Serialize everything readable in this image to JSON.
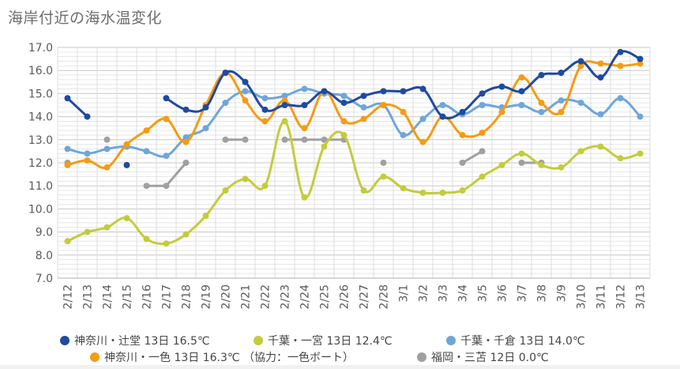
{
  "chart_data": {
    "type": "line",
    "title": "海岸付近の海水温変化",
    "xlabel": "",
    "ylabel": "",
    "ylim": [
      7.0,
      17.0
    ],
    "yticks": [
      "7.0",
      "8.0",
      "9.0",
      "10.0",
      "11.0",
      "12.0",
      "13.0",
      "14.0",
      "15.0",
      "16.0",
      "17.0"
    ],
    "grid": true,
    "legend_position": "bottom",
    "categories": [
      "2/12",
      "2/13",
      "2/14",
      "2/15",
      "2/16",
      "2/17",
      "2/18",
      "2/19",
      "2/20",
      "2/21",
      "2/22",
      "2/23",
      "2/24",
      "2/25",
      "2/26",
      "2/27",
      "2/28",
      "3/1",
      "3/2",
      "3/3",
      "3/4",
      "3/5",
      "3/6",
      "3/7",
      "3/8",
      "3/9",
      "3/10",
      "3/11",
      "3/12",
      "3/13"
    ],
    "series": [
      {
        "name": "神奈川・辻堂 13日 16.5℃",
        "color": "#1f4aa0",
        "smooth": true,
        "values": [
          14.8,
          14.0,
          null,
          11.9,
          null,
          14.8,
          14.3,
          14.4,
          15.9,
          15.5,
          14.3,
          14.5,
          14.5,
          15.1,
          14.6,
          14.9,
          15.1,
          15.1,
          15.2,
          14.0,
          14.2,
          15.0,
          15.3,
          15.1,
          15.8,
          15.9,
          16.4,
          15.7,
          16.8,
          16.5
        ]
      },
      {
        "name": "千葉・一宮 13日 12.4℃",
        "color": "#c3cc3b",
        "smooth": true,
        "values": [
          8.6,
          9.0,
          9.2,
          9.6,
          8.7,
          8.5,
          8.9,
          9.7,
          10.8,
          11.3,
          11.0,
          13.8,
          10.5,
          12.7,
          13.2,
          10.8,
          11.4,
          10.9,
          10.7,
          10.7,
          10.8,
          11.4,
          11.9,
          12.4,
          11.9,
          11.8,
          12.5,
          12.7,
          12.2,
          12.4
        ]
      },
      {
        "name": "千葉・千倉 13日 14.0℃",
        "color": "#6fa6da",
        "smooth": true,
        "values": [
          12.6,
          12.4,
          12.6,
          12.7,
          12.5,
          12.3,
          13.1,
          13.5,
          14.6,
          15.1,
          14.8,
          14.9,
          15.2,
          15.0,
          14.9,
          14.4,
          14.5,
          13.2,
          13.9,
          14.5,
          14.1,
          14.5,
          14.4,
          14.5,
          14.2,
          14.7,
          14.6,
          14.1,
          14.8,
          14.0
        ]
      },
      {
        "name": "神奈川・一色 13日 16.3℃ （協力：一色ボート）",
        "color": "#f59b14",
        "smooth": true,
        "values": [
          11.9,
          12.1,
          11.8,
          12.8,
          13.4,
          13.9,
          12.9,
          14.5,
          15.9,
          14.7,
          13.8,
          14.7,
          13.5,
          15.1,
          13.8,
          13.9,
          14.5,
          14.2,
          12.9,
          14.0,
          13.2,
          13.3,
          14.2,
          15.7,
          14.6,
          14.2,
          16.2,
          16.3,
          16.2,
          16.3
        ]
      },
      {
        "name": "福岡・三苫 12日 0.0℃",
        "color": "#a0a0a0",
        "smooth": false,
        "values": [
          12.0,
          null,
          13.0,
          null,
          11.0,
          11.0,
          12.0,
          null,
          13.0,
          13.0,
          null,
          13.0,
          13.0,
          13.0,
          13.0,
          null,
          12.0,
          null,
          null,
          null,
          12.0,
          12.5,
          null,
          12.0,
          12.0,
          null,
          null,
          null,
          null,
          null
        ]
      }
    ]
  }
}
